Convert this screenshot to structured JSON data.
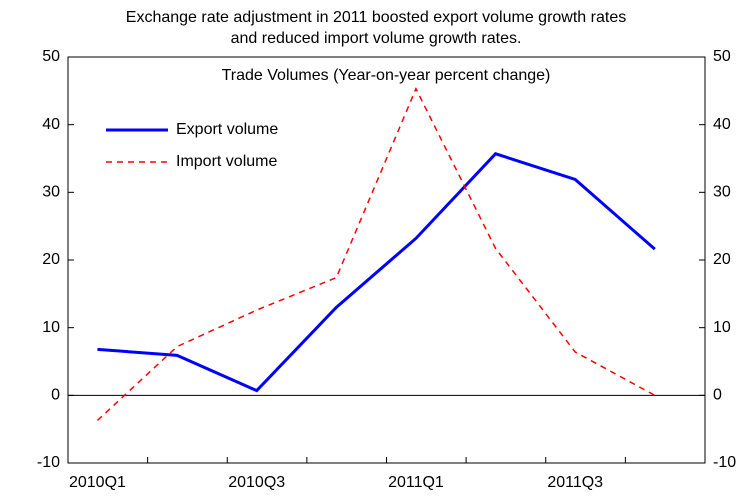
{
  "chart_data": {
    "type": "line",
    "title": [
      "Exchange rate adjustment in 2011 boosted export volume growth rates",
      "and reduced import volume growth rates."
    ],
    "subtitle": "Trade Volumes (Year-on-year percent change)",
    "categories": [
      "2010Q1",
      null,
      "2010Q3",
      null,
      "2011Q1",
      null,
      "2011Q3",
      null
    ],
    "series": [
      {
        "name": "Export volume",
        "color": "#0000ff",
        "dash": false,
        "values": [
          6.8,
          5.9,
          0.7,
          13.0,
          23.2,
          35.7,
          31.9,
          21.6
        ]
      },
      {
        "name": "Import volume",
        "color": "#ff0000",
        "dash": true,
        "values": [
          -3.7,
          7.2,
          12.6,
          17.4,
          45.3,
          21.7,
          6.4,
          0
        ]
      }
    ],
    "ylim": [
      -10,
      50
    ],
    "yticks": [
      -10,
      0,
      10,
      20,
      30,
      40,
      50
    ],
    "y2lim": [
      -10,
      50
    ],
    "y2ticks": [
      -10,
      0,
      10,
      20,
      30,
      40,
      50
    ],
    "grid": false
  }
}
